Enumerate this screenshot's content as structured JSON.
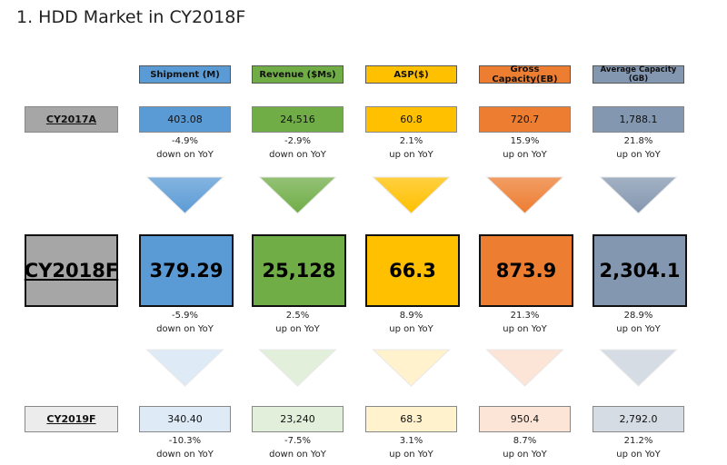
{
  "title": "1. HDD Market in CY2018F",
  "columns": [
    "Shipment (M)",
    "Revenue ($Ms)",
    "ASP($)",
    "Gross Capacity(EB)",
    "Average Capacity (GB)"
  ],
  "rows": [
    {
      "label": "CY2017A",
      "cells": [
        {
          "value": "403.08",
          "change": "-4.9%",
          "direction": "down on YoY"
        },
        {
          "value": "24,516",
          "change": "-2.9%",
          "direction": "down on YoY"
        },
        {
          "value": "60.8",
          "change": "2.1%",
          "direction": "up on YoY"
        },
        {
          "value": "720.7",
          "change": "15.9%",
          "direction": "up on YoY"
        },
        {
          "value": "1,788.1",
          "change": "21.8%",
          "direction": "up on YoY"
        }
      ]
    },
    {
      "label": "CY2018F",
      "cells": [
        {
          "value": "379.29",
          "change": "-5.9%",
          "direction": "down on YoY"
        },
        {
          "value": "25,128",
          "change": "2.5%",
          "direction": "up on YoY"
        },
        {
          "value": "66.3",
          "change": "8.9%",
          "direction": "up on YoY"
        },
        {
          "value": "873.9",
          "change": "21.3%",
          "direction": "up on YoY"
        },
        {
          "value": "2,304.1",
          "change": "28.9%",
          "direction": "up on YoY"
        }
      ]
    },
    {
      "label": "CY2019F",
      "cells": [
        {
          "value": "340.40",
          "change": "-10.3%",
          "direction": "down on YoY"
        },
        {
          "value": "23,240",
          "change": "-7.5%",
          "direction": "down on YoY"
        },
        {
          "value": "68.3",
          "change": "3.1%",
          "direction": "up on YoY"
        },
        {
          "value": "950.4",
          "change": "8.7%",
          "direction": "up on YoY"
        },
        {
          "value": "2,792.0",
          "change": "21.2%",
          "direction": "up on YoY"
        }
      ]
    }
  ]
}
